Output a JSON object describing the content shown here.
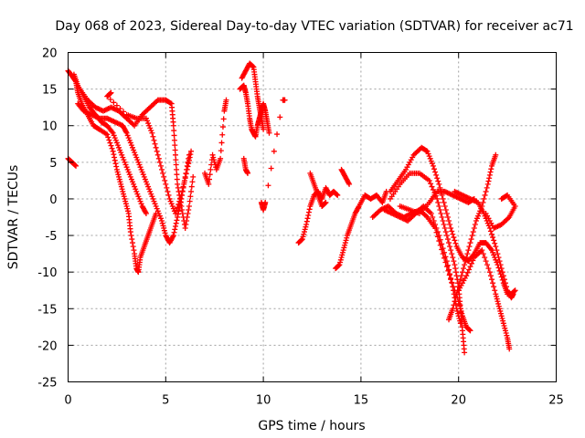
{
  "chart_data": {
    "type": "scatter",
    "title": "Day 068 of 2023, Sidereal Day-to-day VTEC variation (SDTVAR) for receiver ac71",
    "xlabel": "GPS time / hours",
    "ylabel": "SDTVAR / TECUs",
    "xlim": [
      0,
      25
    ],
    "ylim": [
      -25,
      20
    ],
    "xticks": [
      0,
      5,
      10,
      15,
      20,
      25
    ],
    "yticks": [
      -25,
      -20,
      -15,
      -10,
      -5,
      0,
      5,
      10,
      15,
      20
    ],
    "xtick_labels": [
      "0",
      "5",
      "10",
      "15",
      "20",
      "25"
    ],
    "ytick_labels": [
      "-25",
      "-20",
      "-15",
      "-10",
      "-5",
      "0",
      "5",
      "10",
      "15",
      "20"
    ],
    "grid": true,
    "marker": "+",
    "color": "#ff0000",
    "series": [
      {
        "name": "trace-01",
        "points": [
          [
            0.0,
            17.5
          ],
          [
            0.2,
            16.8
          ],
          [
            0.4,
            16.0
          ],
          [
            0.5,
            14.5
          ],
          [
            0.7,
            13.0
          ],
          [
            1.0,
            11.5
          ],
          [
            1.3,
            10.0
          ],
          [
            1.6,
            9.5
          ],
          [
            2.0,
            8.8
          ],
          [
            2.3,
            6.5
          ],
          [
            2.5,
            4.0
          ],
          [
            2.7,
            2.0
          ],
          [
            2.9,
            0.0
          ],
          [
            3.1,
            -2.0
          ],
          [
            3.2,
            -4.5
          ],
          [
            3.4,
            -7.5
          ],
          [
            3.5,
            -9.5
          ],
          [
            3.6,
            -10.0
          ],
          [
            3.7,
            -8.0
          ],
          [
            3.9,
            -6.5
          ],
          [
            4.1,
            -5.0
          ],
          [
            4.3,
            -3.5
          ],
          [
            4.5,
            -2.0
          ]
        ]
      },
      {
        "name": "trace-02",
        "points": [
          [
            0.3,
            17.0
          ],
          [
            0.5,
            15.5
          ],
          [
            0.8,
            14.0
          ],
          [
            1.1,
            12.5
          ],
          [
            1.4,
            11.5
          ],
          [
            1.7,
            10.5
          ],
          [
            2.0,
            10.0
          ],
          [
            2.3,
            9.0
          ],
          [
            2.6,
            7.0
          ],
          [
            2.9,
            5.0
          ],
          [
            3.2,
            3.0
          ],
          [
            3.5,
            1.0
          ],
          [
            3.8,
            -1.0
          ],
          [
            4.0,
            -2.0
          ]
        ]
      },
      {
        "name": "trace-03",
        "points": [
          [
            0.5,
            13.0
          ],
          [
            0.8,
            12.0
          ],
          [
            1.2,
            11.5
          ],
          [
            1.6,
            11.0
          ],
          [
            2.0,
            11.0
          ],
          [
            2.4,
            10.5
          ],
          [
            2.8,
            10.0
          ],
          [
            3.0,
            9.0
          ],
          [
            3.3,
            7.0
          ],
          [
            3.6,
            5.0
          ],
          [
            3.9,
            3.0
          ],
          [
            4.2,
            1.0
          ],
          [
            4.5,
            -1.0
          ],
          [
            4.8,
            -3.0
          ],
          [
            5.0,
            -5.0
          ],
          [
            5.2,
            -6.0
          ],
          [
            5.4,
            -5.0
          ],
          [
            5.6,
            -2.5
          ],
          [
            5.8,
            0.0
          ],
          [
            6.0,
            3.0
          ],
          [
            6.2,
            6.0
          ]
        ]
      },
      {
        "name": "trace-04",
        "points": [
          [
            0.6,
            15.0
          ],
          [
            1.0,
            13.5
          ],
          [
            1.4,
            12.5
          ],
          [
            1.8,
            12.0
          ],
          [
            2.2,
            12.5
          ],
          [
            2.6,
            12.0
          ],
          [
            3.0,
            11.0
          ],
          [
            3.4,
            10.0
          ],
          [
            3.8,
            11.5
          ],
          [
            4.2,
            12.5
          ],
          [
            4.6,
            13.5
          ],
          [
            5.0,
            13.5
          ],
          [
            5.3,
            13.0
          ],
          [
            5.4,
            10.0
          ],
          [
            5.5,
            6.0
          ],
          [
            5.6,
            2.0
          ],
          [
            5.8,
            -1.0
          ],
          [
            6.0,
            -4.0
          ],
          [
            6.2,
            -1.0
          ],
          [
            6.4,
            3.0
          ]
        ]
      },
      {
        "name": "trace-05",
        "points": [
          [
            2.2,
            14.5
          ],
          [
            2.0,
            14.0
          ],
          [
            3.0,
            11.5
          ],
          [
            3.5,
            11.0
          ],
          [
            4.0,
            11.0
          ],
          [
            4.3,
            9.0
          ],
          [
            4.6,
            6.0
          ],
          [
            4.9,
            3.0
          ],
          [
            5.2,
            0.0
          ],
          [
            5.5,
            -2.0
          ],
          [
            5.8,
            0.5
          ],
          [
            6.1,
            4.0
          ],
          [
            6.3,
            6.5
          ]
        ]
      },
      {
        "name": "trace-06",
        "points": [
          [
            0.0,
            5.5
          ],
          [
            0.2,
            5.0
          ],
          [
            0.4,
            4.5
          ]
        ]
      },
      {
        "name": "trace-07",
        "points": [
          [
            7.0,
            3.5
          ],
          [
            7.2,
            2.0
          ],
          [
            7.4,
            6.0
          ],
          [
            7.6,
            4.0
          ],
          [
            7.8,
            5.5
          ],
          [
            8.0,
            12.0
          ],
          [
            8.1,
            13.5
          ]
        ]
      },
      {
        "name": "trace-08",
        "points": [
          [
            8.8,
            15.0
          ],
          [
            9.0,
            15.5
          ],
          [
            9.1,
            14.5
          ],
          [
            9.2,
            13.0
          ],
          [
            9.3,
            11.0
          ],
          [
            9.4,
            9.5
          ],
          [
            9.5,
            9.0
          ],
          [
            9.6,
            8.5
          ],
          [
            9.7,
            10.0
          ],
          [
            9.8,
            11.0
          ],
          [
            9.9,
            12.0
          ],
          [
            10.0,
            13.0
          ],
          [
            10.1,
            12.0
          ],
          [
            10.2,
            10.5
          ],
          [
            10.3,
            9.0
          ]
        ]
      },
      {
        "name": "trace-09",
        "points": [
          [
            8.9,
            16.5
          ],
          [
            9.1,
            17.5
          ],
          [
            9.3,
            18.5
          ],
          [
            9.5,
            18.0
          ],
          [
            9.6,
            16.0
          ],
          [
            9.7,
            14.0
          ],
          [
            9.8,
            12.5
          ],
          [
            9.9,
            11.0
          ],
          [
            10.0,
            9.5
          ]
        ]
      },
      {
        "name": "trace-10",
        "points": [
          [
            9.0,
            5.5
          ],
          [
            9.1,
            4.0
          ],
          [
            9.2,
            3.5
          ]
        ]
      },
      {
        "name": "trace-11",
        "points": [
          [
            9.9,
            -0.5
          ],
          [
            10.0,
            -1.5
          ],
          [
            10.1,
            -0.5
          ],
          [
            11.0,
            13.5
          ],
          [
            11.1,
            13.5
          ]
        ]
      },
      {
        "name": "trace-12",
        "points": [
          [
            11.8,
            -6.0
          ],
          [
            12.0,
            -5.5
          ],
          [
            12.2,
            -3.5
          ],
          [
            12.4,
            -1.0
          ],
          [
            12.6,
            0.5
          ],
          [
            12.8,
            1.0
          ],
          [
            13.0,
            0.0
          ],
          [
            13.2,
            1.5
          ],
          [
            13.4,
            0.5
          ],
          [
            13.6,
            1.0
          ],
          [
            13.8,
            0.5
          ]
        ]
      },
      {
        "name": "trace-13",
        "points": [
          [
            12.4,
            3.5
          ],
          [
            12.6,
            2.0
          ],
          [
            12.8,
            0.5
          ],
          [
            13.0,
            -1.0
          ],
          [
            13.2,
            -0.5
          ]
        ]
      },
      {
        "name": "trace-14",
        "points": [
          [
            13.7,
            -9.5
          ],
          [
            13.9,
            -9.0
          ],
          [
            14.1,
            -7.0
          ],
          [
            14.3,
            -5.0
          ],
          [
            14.5,
            -3.5
          ],
          [
            14.7,
            -2.0
          ],
          [
            14.9,
            -1.0
          ],
          [
            15.2,
            0.5
          ],
          [
            15.5,
            0.0
          ],
          [
            15.8,
            0.5
          ],
          [
            16.1,
            -0.5
          ],
          [
            16.3,
            1.0
          ]
        ]
      },
      {
        "name": "trace-15",
        "points": [
          [
            14.0,
            4.0
          ],
          [
            14.2,
            3.0
          ],
          [
            14.4,
            2.0
          ]
        ]
      },
      {
        "name": "trace-16",
        "points": [
          [
            15.6,
            -2.5
          ],
          [
            16.0,
            -1.5
          ],
          [
            16.4,
            -1.0
          ],
          [
            16.8,
            -2.0
          ],
          [
            17.2,
            -2.5
          ],
          [
            17.6,
            -2.0
          ],
          [
            18.0,
            -1.5
          ],
          [
            18.4,
            -2.5
          ],
          [
            18.8,
            -4.0
          ],
          [
            19.2,
            -7.5
          ],
          [
            19.6,
            -11.0
          ],
          [
            20.0,
            -14.0
          ],
          [
            20.2,
            -16.0
          ],
          [
            20.4,
            -17.5
          ],
          [
            20.6,
            -18.0
          ]
        ]
      },
      {
        "name": "trace-17",
        "points": [
          [
            16.5,
            0.0
          ],
          [
            17.0,
            2.0
          ],
          [
            17.5,
            3.5
          ],
          [
            18.0,
            3.5
          ],
          [
            18.5,
            2.5
          ],
          [
            18.9,
            0.0
          ],
          [
            19.2,
            -3.0
          ],
          [
            19.5,
            -6.0
          ],
          [
            19.8,
            -9.0
          ],
          [
            20.0,
            -12.0
          ],
          [
            20.1,
            -15.0
          ],
          [
            20.2,
            -18.0
          ],
          [
            20.3,
            -21.0
          ]
        ]
      },
      {
        "name": "trace-18",
        "points": [
          [
            16.2,
            -1.5
          ],
          [
            16.6,
            -2.0
          ],
          [
            17.0,
            -2.5
          ],
          [
            17.4,
            -3.0
          ],
          [
            17.8,
            -2.0
          ],
          [
            18.2,
            -1.0
          ],
          [
            18.6,
            -2.0
          ],
          [
            19.0,
            -5.0
          ],
          [
            19.4,
            -8.5
          ],
          [
            19.7,
            -12.0
          ],
          [
            19.9,
            -15.0
          ],
          [
            20.1,
            -17.0
          ]
        ]
      },
      {
        "name": "trace-19",
        "points": [
          [
            16.5,
            1.0
          ],
          [
            16.9,
            2.5
          ],
          [
            17.3,
            4.0
          ],
          [
            17.7,
            6.0
          ],
          [
            18.1,
            7.0
          ],
          [
            18.4,
            6.5
          ],
          [
            18.7,
            4.5
          ],
          [
            19.0,
            2.0
          ],
          [
            19.3,
            -1.0
          ],
          [
            19.6,
            -4.0
          ],
          [
            19.9,
            -6.5
          ],
          [
            20.2,
            -8.0
          ],
          [
            20.5,
            -8.5
          ],
          [
            20.8,
            -7.5
          ],
          [
            21.1,
            -6.0
          ],
          [
            21.4,
            -6.0
          ],
          [
            21.7,
            -7.0
          ],
          [
            22.0,
            -9.0
          ],
          [
            22.3,
            -11.5
          ],
          [
            22.5,
            -13.0
          ],
          [
            22.7,
            -13.0
          ],
          [
            22.9,
            -12.5
          ]
        ]
      },
      {
        "name": "trace-20",
        "points": [
          [
            19.5,
            -16.5
          ],
          [
            19.7,
            -15.0
          ],
          [
            20.0,
            -12.0
          ],
          [
            20.3,
            -9.0
          ],
          [
            20.6,
            -6.0
          ],
          [
            20.9,
            -3.0
          ],
          [
            21.2,
            -1.0
          ],
          [
            21.5,
            2.0
          ],
          [
            21.7,
            4.5
          ],
          [
            21.9,
            6.0
          ]
        ]
      },
      {
        "name": "trace-21",
        "points": [
          [
            19.8,
            1.0
          ],
          [
            20.2,
            0.5
          ],
          [
            20.6,
            0.0
          ],
          [
            21.0,
            -0.5
          ],
          [
            21.3,
            -2.0
          ],
          [
            21.6,
            -4.0
          ],
          [
            21.9,
            -6.5
          ],
          [
            22.2,
            -9.5
          ],
          [
            22.5,
            -12.5
          ],
          [
            22.7,
            -13.5
          ],
          [
            22.8,
            -13.0
          ]
        ]
      },
      {
        "name": "trace-22",
        "points": [
          [
            20.0,
            -12.5
          ],
          [
            20.4,
            -10.5
          ],
          [
            20.8,
            -8.0
          ],
          [
            21.2,
            -7.0
          ],
          [
            21.6,
            -10.0
          ],
          [
            21.9,
            -13.0
          ],
          [
            22.1,
            -15.0
          ],
          [
            22.3,
            -17.0
          ],
          [
            22.5,
            -19.0
          ],
          [
            22.6,
            -20.5
          ]
        ]
      },
      {
        "name": "trace-23",
        "points": [
          [
            21.4,
            -2.0
          ],
          [
            21.8,
            -4.0
          ],
          [
            22.2,
            -3.5
          ],
          [
            22.6,
            -2.5
          ],
          [
            22.9,
            -1.0
          ],
          [
            22.5,
            0.5
          ],
          [
            22.2,
            0.0
          ]
        ]
      },
      {
        "name": "trace-24",
        "points": [
          [
            17.0,
            -1.0
          ],
          [
            17.5,
            -1.5
          ],
          [
            18.0,
            -2.0
          ],
          [
            18.5,
            -0.5
          ],
          [
            18.9,
            1.0
          ],
          [
            19.3,
            1.0
          ],
          [
            19.7,
            0.5
          ],
          [
            20.1,
            0.0
          ],
          [
            20.5,
            -0.5
          ],
          [
            20.8,
            0.0
          ]
        ]
      }
    ]
  }
}
